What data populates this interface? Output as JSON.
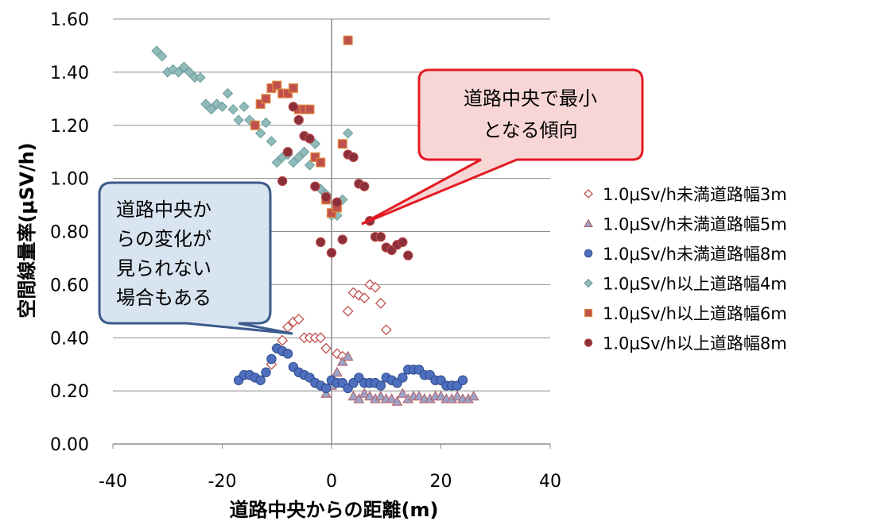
{
  "chart_data": {
    "type": "scatter",
    "title": "",
    "xlabel": "道路中央からの距離(m)",
    "ylabel": "空間線量率(μSV/h)",
    "xlim": [
      -40,
      40
    ],
    "ylim": [
      0,
      1.6
    ],
    "xticks": [
      "-40",
      "-20",
      "0",
      "20",
      "40"
    ],
    "yticks": [
      "0.00",
      "0.20",
      "0.40",
      "0.60",
      "0.80",
      "1.00",
      "1.20",
      "1.40",
      "1.60"
    ],
    "grid": "horizontal",
    "legend_position": "right",
    "series": [
      {
        "name": "1.0μSv/h未満道路幅3m",
        "marker": "diamond-open",
        "color": "#c0504d",
        "x": [
          -11,
          -10,
          -9,
          -8,
          -7,
          -6,
          -5,
          -4,
          -3,
          -2,
          -1,
          1,
          2,
          3,
          4,
          5,
          6,
          7,
          8,
          9,
          10
        ],
        "y": [
          0.3,
          0.36,
          0.39,
          0.44,
          0.46,
          0.47,
          0.4,
          0.4,
          0.4,
          0.4,
          0.36,
          0.34,
          0.33,
          0.5,
          0.57,
          0.56,
          0.55,
          0.6,
          0.59,
          0.53,
          0.43
        ]
      },
      {
        "name": "1.0μSv/h未満道路幅5m",
        "marker": "triangle",
        "color": "#9aa4c8",
        "x": [
          -1,
          0,
          1,
          2,
          3,
          4,
          5,
          6,
          7,
          8,
          9,
          10,
          11,
          12,
          13,
          14,
          15,
          16,
          17,
          18,
          19,
          20,
          21,
          22,
          23,
          24,
          25,
          26
        ],
        "y": [
          0.19,
          0.22,
          0.27,
          0.31,
          0.33,
          0.18,
          0.17,
          0.19,
          0.18,
          0.17,
          0.18,
          0.17,
          0.17,
          0.16,
          0.19,
          0.17,
          0.18,
          0.18,
          0.17,
          0.17,
          0.18,
          0.18,
          0.17,
          0.17,
          0.18,
          0.17,
          0.17,
          0.18
        ]
      },
      {
        "name": "1.0μSv/h未満道路幅8m",
        "marker": "circle",
        "color": "#4f6fbf",
        "x": [
          -17,
          -16,
          -15,
          -14,
          -13,
          -12,
          -11,
          -10,
          -9,
          -8,
          -7,
          -6,
          -5,
          -4,
          -3,
          -2,
          -1,
          0,
          1,
          2,
          3,
          4,
          5,
          6,
          7,
          8,
          9,
          10,
          11,
          12,
          13,
          14,
          15,
          16,
          17,
          18,
          19,
          20,
          21,
          22,
          23,
          24
        ],
        "y": [
          0.24,
          0.26,
          0.26,
          0.25,
          0.24,
          0.27,
          0.32,
          0.36,
          0.35,
          0.34,
          0.29,
          0.27,
          0.26,
          0.25,
          0.23,
          0.22,
          0.21,
          0.24,
          0.23,
          0.23,
          0.21,
          0.23,
          0.25,
          0.23,
          0.23,
          0.23,
          0.22,
          0.25,
          0.24,
          0.23,
          0.25,
          0.28,
          0.28,
          0.28,
          0.26,
          0.26,
          0.24,
          0.24,
          0.22,
          0.22,
          0.22,
          0.24
        ]
      },
      {
        "name": "1.0μSv/h以上道路幅4m",
        "marker": "diamond",
        "color": "#8fbcbb",
        "x": [
          -32,
          -31,
          -30,
          -29,
          -28,
          -27,
          -26,
          -25,
          -24,
          -23,
          -22,
          -21,
          -20,
          -19,
          -18,
          -17,
          -16,
          -15,
          -14,
          -13,
          -12,
          -11,
          -10,
          -9,
          -8,
          -7,
          -6,
          -5,
          -4,
          -3,
          -2,
          -1,
          0,
          1,
          2,
          3
        ],
        "y": [
          1.48,
          1.46,
          1.4,
          1.41,
          1.4,
          1.42,
          1.4,
          1.38,
          1.38,
          1.28,
          1.26,
          1.28,
          1.27,
          1.32,
          1.26,
          1.22,
          1.27,
          1.22,
          1.2,
          1.17,
          1.21,
          1.14,
          1.06,
          1.08,
          1.09,
          1.06,
          1.08,
          1.1,
          1.05,
          1.13,
          0.96,
          0.94,
          0.86,
          0.86,
          0.92,
          1.17
        ]
      },
      {
        "name": "1.0μSv/h以上道路幅6m",
        "marker": "square",
        "color": "#c0504d",
        "x": [
          -14,
          -13,
          -12,
          -11,
          -10,
          -9,
          -8,
          -7,
          -6,
          -5,
          -4,
          -3,
          -2,
          -1,
          0,
          1,
          2,
          3
        ],
        "y": [
          1.2,
          1.28,
          1.3,
          1.34,
          1.35,
          1.32,
          1.32,
          1.34,
          1.26,
          1.26,
          1.26,
          1.08,
          1.06,
          0.92,
          0.87,
          0.89,
          1.13,
          1.52
        ]
      },
      {
        "name": "1.0μSv/h以上道路幅8m",
        "marker": "circle",
        "color": "#8b2f3a",
        "x": [
          -9,
          -8,
          -7,
          -6,
          -5,
          -4,
          -3,
          -2,
          -1,
          0,
          1,
          2,
          3,
          4,
          5,
          6,
          7,
          8,
          9,
          10,
          11,
          12,
          13,
          14
        ],
        "y": [
          0.99,
          1.1,
          1.27,
          1.22,
          1.16,
          1.15,
          0.97,
          0.76,
          0.93,
          0.72,
          0.91,
          0.77,
          1.09,
          1.08,
          0.98,
          0.97,
          0.84,
          0.78,
          0.78,
          0.74,
          0.73,
          0.75,
          0.76,
          0.71
        ]
      }
    ],
    "annotations": [
      {
        "id": "callout-pink",
        "lines": [
          "道路中央で最小",
          "となる傾向"
        ],
        "fill": "#f8d6d6",
        "stroke": "#e31b23"
      },
      {
        "id": "callout-blue",
        "lines": [
          "道路中央か",
          "らの変化が",
          "見られない",
          "場合もある"
        ],
        "fill": "#d9e4f1",
        "stroke": "#3c5a8c"
      }
    ]
  }
}
